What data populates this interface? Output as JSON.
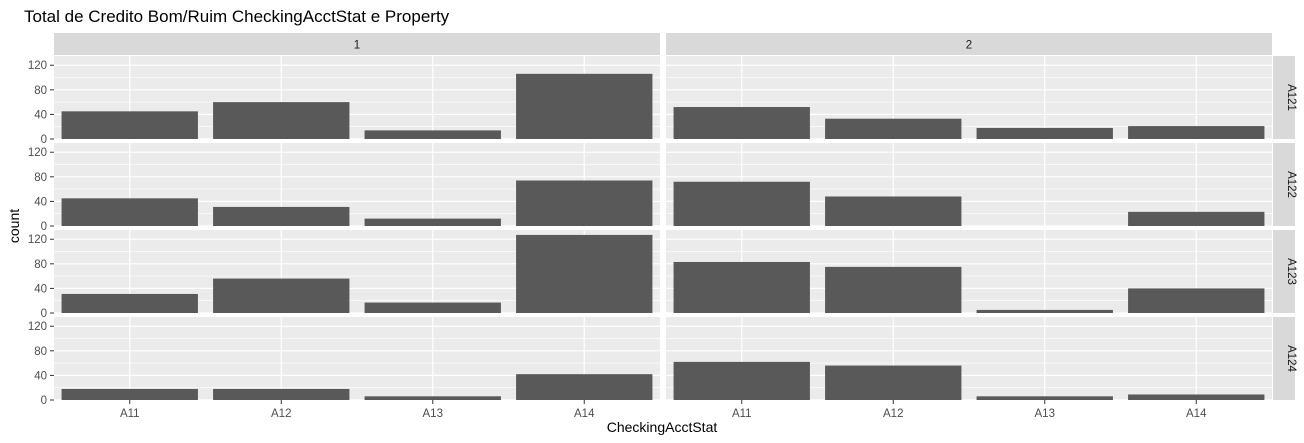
{
  "chart_data": {
    "type": "bar",
    "title": "Total de Credito Bom/Ruim CheckingAcctStat e Property",
    "xlabel": "CheckingAcctStat",
    "ylabel": "count",
    "categories": [
      "A11",
      "A12",
      "A13",
      "A14"
    ],
    "y_ticks": [
      0,
      40,
      80,
      120
    ],
    "ylim": [
      0,
      135
    ],
    "facet_columns": [
      "1",
      "2"
    ],
    "facet_rows": [
      "A121",
      "A122",
      "A123",
      "A124"
    ],
    "panels": [
      {
        "column": "1",
        "row": "A121",
        "values": [
          45,
          60,
          14,
          106
        ]
      },
      {
        "column": "2",
        "row": "A121",
        "values": [
          52,
          33,
          18,
          21
        ]
      },
      {
        "column": "1",
        "row": "A122",
        "values": [
          45,
          31,
          12,
          74
        ]
      },
      {
        "column": "2",
        "row": "A122",
        "values": [
          72,
          48,
          0,
          23
        ]
      },
      {
        "column": "1",
        "row": "A123",
        "values": [
          31,
          56,
          17,
          127
        ]
      },
      {
        "column": "2",
        "row": "A123",
        "values": [
          83,
          75,
          5,
          40
        ]
      },
      {
        "column": "1",
        "row": "A124",
        "values": [
          18,
          18,
          6,
          42
        ]
      },
      {
        "column": "2",
        "row": "A124",
        "values": [
          62,
          56,
          6,
          9
        ]
      }
    ],
    "grid": true,
    "colors": {
      "bar": "#595959",
      "panel_background": "#ebebeb",
      "grid": "#ffffff",
      "strip": "#d9d9d9"
    }
  }
}
